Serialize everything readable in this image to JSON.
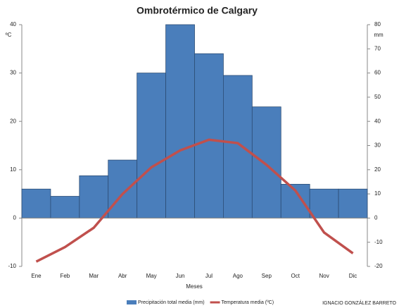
{
  "chart_data": {
    "type": "bar",
    "title": "Ombrotérmico de Calgary",
    "xlabel": "Meses",
    "ylabel": "ºC",
    "y2label": "mm",
    "annotation": "IGNACIO GONZÁLEZ BARRETO",
    "categories": [
      "Ene",
      "Feb",
      "Mar",
      "Abr",
      "May",
      "Jun",
      "Jul",
      "Ago",
      "Sep",
      "Oct",
      "Nov",
      "Dic"
    ],
    "series": [
      {
        "name": "Precipitación total media (mm)",
        "type": "bar",
        "axis": "y2",
        "color": "#4a7ebb",
        "values": [
          12,
          9,
          17.5,
          24,
          60,
          80,
          68,
          59,
          46,
          14,
          12,
          12
        ]
      },
      {
        "name": "Temperatura media (ºC)",
        "type": "line",
        "axis": "y",
        "color": "#c0504d",
        "values": [
          -9,
          -6,
          -2,
          5,
          10.5,
          14,
          16.2,
          15.5,
          11,
          5.7,
          -3,
          -7.3
        ]
      }
    ],
    "ylim": [
      -10,
      40
    ],
    "yticks": [
      -10,
      0,
      10,
      20,
      30,
      40
    ],
    "y2lim": [
      -20,
      80
    ],
    "y2ticks": [
      -20,
      -10,
      0,
      10,
      20,
      30,
      40,
      50,
      60,
      70,
      80
    ],
    "grid": false
  }
}
